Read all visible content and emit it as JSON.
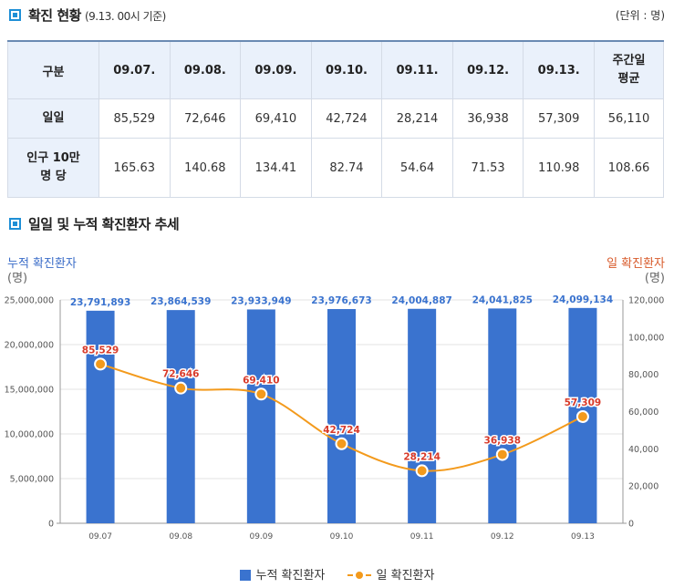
{
  "status": {
    "title": "확진 현황",
    "subtitle": "(9.13. 00시 기준)",
    "unit": "(단위 : 명)",
    "header": [
      "구분",
      "09.07.",
      "09.08.",
      "09.09.",
      "09.10.",
      "09.11.",
      "09.12.",
      "09.13.",
      "주간일 평균"
    ],
    "rows": [
      {
        "label": "일일",
        "values": [
          "85,529",
          "72,646",
          "69,410",
          "42,724",
          "28,214",
          "36,938",
          "57,309",
          "56,110"
        ]
      },
      {
        "label": "인구 10만 명 당",
        "values": [
          "165.63",
          "140.68",
          "134.41",
          "82.74",
          "54.64",
          "71.53",
          "110.98",
          "108.66"
        ]
      }
    ]
  },
  "trend": {
    "title": "일일 및 누적 확진환자 추세",
    "left_axis_title": "누적 확진환자",
    "left_axis_unit": "(명)",
    "right_axis_title": "일 확진환자",
    "right_axis_unit": "(명)",
    "legend_bar": "누적 확진환자",
    "legend_line": "일 확진환자"
  },
  "colors": {
    "bar": "#3a73cf",
    "line": "#f39a1c",
    "bar_label": "#3a73cf",
    "line_label": "#d83a2a"
  },
  "chart_data": {
    "type": "bar+line",
    "categories": [
      "09.07",
      "09.08",
      "09.09",
      "09.10",
      "09.11",
      "09.12",
      "09.13"
    ],
    "series": [
      {
        "name": "누적 확진환자",
        "kind": "bar",
        "axis": "left",
        "values": [
          23791893,
          23864539,
          23933949,
          23976673,
          24004887,
          24041825,
          24099134
        ],
        "labels": [
          "23,791,893",
          "23,864,539",
          "23,933,949",
          "23,976,673",
          "24,004,887",
          "24,041,825",
          "24,099,134"
        ]
      },
      {
        "name": "일 확진환자",
        "kind": "line",
        "axis": "right",
        "values": [
          85529,
          72646,
          69410,
          42724,
          28214,
          36938,
          57309
        ],
        "labels": [
          "85,529",
          "72,646",
          "69,410",
          "42,724",
          "28,214",
          "36,938",
          "57,309"
        ]
      }
    ],
    "left_ylim": [
      0,
      25000000
    ],
    "left_ticks": [
      "0",
      "5,000,000",
      "10,000,000",
      "15,000,000",
      "20,000,000",
      "25,000,000"
    ],
    "right_ylim": [
      0,
      120000
    ],
    "right_ticks": [
      "0",
      "20,000",
      "40,000",
      "60,000",
      "80,000",
      "100,000",
      "120,000"
    ],
    "grid": true
  }
}
